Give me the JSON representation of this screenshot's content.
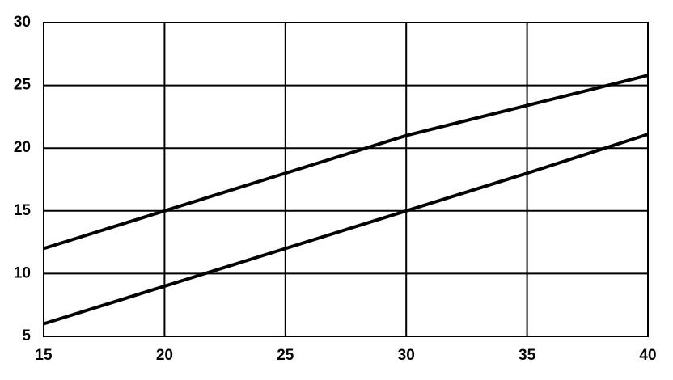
{
  "chart_data": {
    "type": "line",
    "x": [
      15,
      20,
      25,
      30,
      35,
      40
    ],
    "series": [
      {
        "color": "#000000",
        "values": [
          12,
          15,
          18,
          21,
          23.4,
          25.8
        ]
      },
      {
        "color": "#000000",
        "values": [
          6,
          9,
          12,
          15,
          18,
          21.1
        ]
      }
    ],
    "xlim": [
      15,
      40
    ],
    "xticks": [
      15,
      20,
      25,
      30,
      35,
      40
    ],
    "ylim": [
      5,
      30
    ],
    "yticks": [
      5,
      10,
      15,
      20,
      25,
      30
    ],
    "grid": true
  }
}
